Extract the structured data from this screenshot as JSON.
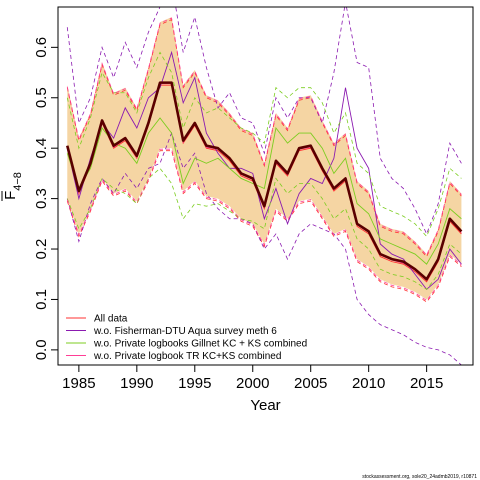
{
  "chart_data": {
    "type": "line",
    "xlabel": "Year",
    "ylabel_main": "F",
    "ylabel_sub": "4−8",
    "xlim": [
      1983.2,
      2019.0
    ],
    "ylim": [
      -0.03,
      0.68
    ],
    "x_ticks": [
      1985,
      1990,
      1995,
      2000,
      2005,
      2010,
      2015
    ],
    "y_ticks": [
      0.0,
      0.1,
      0.2,
      0.3,
      0.4,
      0.5,
      0.6
    ],
    "y_tick_labels": [
      "0.0",
      "0.1",
      "0.2",
      "0.3",
      "0.4",
      "0.5",
      "0.6"
    ],
    "band_color": "#F5D5A3",
    "base_color": "#5A0000",
    "legend_position": "bottom-left",
    "credit": "stockassessment.org, sole20_24admb2019, r10871",
    "x": [
      1984,
      1985,
      1986,
      1987,
      1988,
      1989,
      1990,
      1991,
      1992,
      1993,
      1994,
      1995,
      1996,
      1997,
      1998,
      1999,
      2000,
      2001,
      2002,
      2003,
      2004,
      2005,
      2006,
      2007,
      2008,
      2009,
      2010,
      2011,
      2012,
      2013,
      2014,
      2015,
      2016,
      2017,
      2018
    ],
    "base": {
      "estimate": [
        0.405,
        0.315,
        0.37,
        0.455,
        0.405,
        0.42,
        0.385,
        0.45,
        0.53,
        0.53,
        0.415,
        0.45,
        0.405,
        0.4,
        0.38,
        0.35,
        0.34,
        0.285,
        0.375,
        0.35,
        0.4,
        0.405,
        0.36,
        0.32,
        0.34,
        0.25,
        0.235,
        0.19,
        0.18,
        0.175,
        0.16,
        0.14,
        0.18,
        0.26,
        0.235
      ],
      "lower": [
        0.3,
        0.23,
        0.28,
        0.34,
        0.31,
        0.32,
        0.295,
        0.34,
        0.4,
        0.4,
        0.315,
        0.335,
        0.305,
        0.3,
        0.285,
        0.26,
        0.25,
        0.21,
        0.28,
        0.26,
        0.295,
        0.3,
        0.265,
        0.23,
        0.24,
        0.18,
        0.165,
        0.14,
        0.13,
        0.125,
        0.115,
        0.1,
        0.13,
        0.19,
        0.17
      ],
      "upper": [
        0.525,
        0.42,
        0.47,
        0.57,
        0.51,
        0.52,
        0.48,
        0.56,
        0.65,
        0.66,
        0.525,
        0.555,
        0.505,
        0.495,
        0.47,
        0.44,
        0.43,
        0.37,
        0.47,
        0.44,
        0.5,
        0.505,
        0.455,
        0.41,
        0.43,
        0.335,
        0.315,
        0.25,
        0.24,
        0.235,
        0.215,
        0.19,
        0.24,
        0.335,
        0.31
      ]
    },
    "series": [
      {
        "name": "All data",
        "color": "#FF3030",
        "estimate": [
          0.4,
          0.31,
          0.365,
          0.45,
          0.4,
          0.415,
          0.38,
          0.445,
          0.525,
          0.525,
          0.41,
          0.445,
          0.4,
          0.395,
          0.375,
          0.345,
          0.335,
          0.28,
          0.37,
          0.345,
          0.395,
          0.4,
          0.355,
          0.315,
          0.335,
          0.245,
          0.23,
          0.185,
          0.175,
          0.17,
          0.155,
          0.135,
          0.175,
          0.255,
          0.23
        ],
        "lower": [
          0.295,
          0.225,
          0.275,
          0.335,
          0.305,
          0.315,
          0.29,
          0.335,
          0.395,
          0.395,
          0.31,
          0.33,
          0.3,
          0.295,
          0.28,
          0.255,
          0.245,
          0.205,
          0.275,
          0.255,
          0.29,
          0.295,
          0.26,
          0.225,
          0.235,
          0.175,
          0.16,
          0.135,
          0.125,
          0.12,
          0.11,
          0.095,
          0.125,
          0.185,
          0.165
        ],
        "upper": [
          0.52,
          0.415,
          0.465,
          0.565,
          0.505,
          0.515,
          0.475,
          0.555,
          0.645,
          0.655,
          0.52,
          0.55,
          0.5,
          0.49,
          0.465,
          0.435,
          0.425,
          0.365,
          0.465,
          0.435,
          0.495,
          0.5,
          0.45,
          0.405,
          0.425,
          0.33,
          0.31,
          0.245,
          0.235,
          0.23,
          0.21,
          0.185,
          0.235,
          0.33,
          0.305
        ]
      },
      {
        "name": "w.o. Fisherman-DTU Aqua survey meth 6",
        "color": "#8B1AB0",
        "estimate": [
          0.4,
          0.3,
          0.38,
          0.45,
          0.42,
          0.48,
          0.44,
          0.5,
          0.52,
          0.59,
          0.49,
          0.54,
          0.43,
          0.39,
          0.36,
          0.36,
          0.35,
          0.26,
          0.32,
          0.25,
          0.31,
          0.34,
          0.33,
          0.38,
          0.52,
          0.4,
          0.36,
          0.21,
          0.19,
          0.18,
          0.15,
          0.12,
          0.14,
          0.2,
          0.17
        ],
        "lower": [
          0.3,
          0.215,
          0.29,
          0.34,
          0.31,
          0.35,
          0.32,
          0.36,
          0.37,
          0.43,
          0.36,
          0.39,
          0.31,
          0.28,
          0.26,
          0.26,
          0.25,
          0.2,
          0.23,
          0.18,
          0.23,
          0.25,
          0.24,
          0.23,
          0.2,
          0.1,
          0.07,
          0.05,
          0.04,
          0.03,
          0.015,
          0.005,
          0.0,
          -0.01,
          -0.03
        ],
        "upper": [
          0.64,
          0.45,
          0.5,
          0.6,
          0.54,
          0.61,
          0.56,
          0.63,
          0.68,
          0.73,
          0.59,
          0.66,
          0.56,
          0.48,
          0.51,
          0.46,
          0.45,
          0.39,
          0.5,
          0.46,
          0.5,
          0.5,
          0.45,
          0.55,
          0.69,
          0.57,
          0.56,
          0.38,
          0.34,
          0.32,
          0.28,
          0.23,
          0.29,
          0.41,
          0.37
        ]
      },
      {
        "name": "w.o. Private logbooks Gillnet KC + KS combined",
        "color": "#7CCD20",
        "estimate": [
          0.39,
          0.32,
          0.36,
          0.44,
          0.41,
          0.4,
          0.37,
          0.43,
          0.46,
          0.43,
          0.33,
          0.38,
          0.37,
          0.38,
          0.36,
          0.34,
          0.33,
          0.32,
          0.44,
          0.41,
          0.43,
          0.43,
          0.4,
          0.35,
          0.38,
          0.29,
          0.27,
          0.22,
          0.21,
          0.2,
          0.19,
          0.17,
          0.21,
          0.28,
          0.26
        ],
        "lower": [
          0.3,
          0.24,
          0.28,
          0.34,
          0.32,
          0.31,
          0.29,
          0.34,
          0.36,
          0.33,
          0.26,
          0.29,
          0.285,
          0.29,
          0.275,
          0.26,
          0.255,
          0.24,
          0.34,
          0.31,
          0.33,
          0.33,
          0.3,
          0.26,
          0.28,
          0.22,
          0.2,
          0.16,
          0.15,
          0.145,
          0.135,
          0.12,
          0.15,
          0.21,
          0.19
        ],
        "upper": [
          0.5,
          0.4,
          0.46,
          0.55,
          0.51,
          0.51,
          0.47,
          0.54,
          0.59,
          0.55,
          0.44,
          0.5,
          0.47,
          0.48,
          0.46,
          0.44,
          0.43,
          0.41,
          0.52,
          0.5,
          0.52,
          0.52,
          0.49,
          0.43,
          0.47,
          0.37,
          0.35,
          0.285,
          0.275,
          0.265,
          0.25,
          0.225,
          0.28,
          0.36,
          0.34
        ]
      },
      {
        "name": "w.o. Private logbook TR KC+KS combined",
        "color": "#FF3E96",
        "estimate": [
          0.402,
          0.312,
          0.368,
          0.452,
          0.402,
          0.418,
          0.382,
          0.448,
          0.528,
          0.528,
          0.412,
          0.448,
          0.402,
          0.398,
          0.378,
          0.348,
          0.338,
          0.283,
          0.372,
          0.348,
          0.398,
          0.402,
          0.358,
          0.318,
          0.338,
          0.248,
          0.233,
          0.188,
          0.178,
          0.172,
          0.158,
          0.138,
          0.178,
          0.258,
          0.233
        ],
        "lower": [
          0.298,
          0.228,
          0.278,
          0.338,
          0.308,
          0.318,
          0.293,
          0.338,
          0.398,
          0.398,
          0.313,
          0.333,
          0.303,
          0.298,
          0.283,
          0.258,
          0.248,
          0.208,
          0.278,
          0.258,
          0.293,
          0.298,
          0.263,
          0.228,
          0.238,
          0.178,
          0.163,
          0.138,
          0.128,
          0.123,
          0.113,
          0.098,
          0.128,
          0.188,
          0.168
        ],
        "upper": [
          0.522,
          0.418,
          0.468,
          0.568,
          0.508,
          0.518,
          0.478,
          0.558,
          0.648,
          0.658,
          0.523,
          0.553,
          0.503,
          0.493,
          0.468,
          0.438,
          0.428,
          0.368,
          0.468,
          0.438,
          0.498,
          0.503,
          0.453,
          0.408,
          0.428,
          0.333,
          0.313,
          0.248,
          0.238,
          0.233,
          0.213,
          0.188,
          0.238,
          0.333,
          0.308
        ]
      }
    ]
  }
}
